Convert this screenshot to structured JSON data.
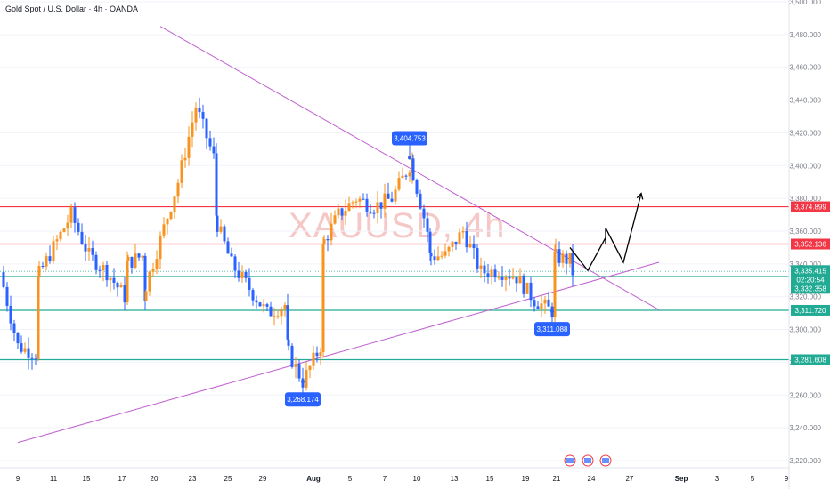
{
  "header": {
    "title": "Gold Spot / U.S. Dollar · 4h · OANDA"
  },
  "watermark": {
    "text": "XAUUSD, 4h"
  },
  "colors": {
    "up": "#f7931e",
    "down": "#2962ff",
    "trend": "#c060d0",
    "resistance": "#f23645",
    "support": "#22ab94",
    "projection": "#000000",
    "axis_text": "#787b86",
    "date_text": "#131722"
  },
  "chart_data": {
    "type": "candlestick",
    "title": "Gold Spot / U.S. Dollar · 4h · OANDA",
    "ylim": [
      3211,
      3500
    ],
    "y_ticks": [
      "3,500.000",
      "3,480.000",
      "3,460.000",
      "3,440.000",
      "3,420.000",
      "3,400.000",
      "3,380.000",
      "3,360.000",
      "3,340.000",
      "3,320.000",
      "3,300.000",
      "3,280.000",
      "3,260.000",
      "3,240.000",
      "3,220.000"
    ],
    "x_ticks": [
      "9",
      "11",
      "15",
      "17",
      "20",
      "23",
      "25",
      "29",
      "Aug",
      "5",
      "7",
      "10",
      "13",
      "15",
      "19",
      "21",
      "24",
      "27",
      "Sep",
      "3",
      "5",
      "9"
    ],
    "price_path": [
      [
        "Jul 8",
        3335
      ],
      [
        "Jul 9",
        3290
      ],
      [
        "Jul 10",
        3285
      ],
      [
        "Jul 10",
        3330
      ],
      [
        "Jul 11",
        3350
      ],
      [
        "Jul 14",
        3370
      ],
      [
        "Jul 15",
        3345
      ],
      [
        "Jul 16",
        3335
      ],
      [
        "Jul 17",
        3320
      ],
      [
        "Jul 17",
        3340
      ],
      [
        "Jul 18",
        3345
      ],
      [
        "Jul 18",
        3320
      ],
      [
        "Jul 21",
        3355
      ],
      [
        "Jul 22",
        3390
      ],
      [
        "Jul 23",
        3436
      ],
      [
        "Jul 24",
        3405
      ],
      [
        "Jul 24",
        3370
      ],
      [
        "Jul 25",
        3340
      ],
      [
        "Jul 28",
        3325
      ],
      [
        "Jul 29",
        3310
      ],
      [
        "Jul 30",
        3315
      ],
      [
        "Jul 30",
        3290
      ],
      [
        "Jul 31",
        3268
      ],
      [
        "Aug 1",
        3290
      ],
      [
        "Aug 1",
        3350
      ],
      [
        "Aug 4",
        3370
      ],
      [
        "Aug 5",
        3380
      ],
      [
        "Aug 6",
        3375
      ],
      [
        "Aug 7",
        3380
      ],
      [
        "Aug 8",
        3400
      ],
      [
        "Aug 8",
        3404
      ],
      [
        "Aug 11",
        3360
      ],
      [
        "Aug 11",
        3345
      ],
      [
        "Aug 12",
        3345
      ],
      [
        "Aug 13",
        3360
      ],
      [
        "Aug 14",
        3335
      ],
      [
        "Aug 15",
        3336
      ],
      [
        "Aug 18",
        3332
      ],
      [
        "Aug 19",
        3318
      ],
      [
        "Aug 20",
        3311
      ],
      [
        "Aug 20",
        3345
      ],
      [
        "Aug 21",
        3342
      ],
      [
        "Aug 21",
        3335
      ]
    ],
    "horizontal_levels": [
      {
        "label": "3,374.899",
        "value": 3374.899,
        "role": "resistance"
      },
      {
        "label": "3,352.136",
        "value": 3352.136,
        "role": "resistance"
      },
      {
        "label": "3,332.358",
        "value": 3332.358,
        "role": "support"
      },
      {
        "label": "3,311.720",
        "value": 3311.72,
        "role": "support"
      },
      {
        "label": "3,281.608",
        "value": 3281.608,
        "role": "support"
      }
    ],
    "current_price": {
      "label": "3,335.415",
      "countdown": "02:20:54",
      "value": 3335.415
    },
    "annotations": [
      {
        "label": "3,404.753",
        "x": "Aug 8",
        "y": 3404.753
      },
      {
        "label": "3,268.174",
        "x": "Jul 31",
        "y": 3268.174
      },
      {
        "label": "3,311.088",
        "x": "Aug 20",
        "y": 3311.088
      }
    ],
    "trendlines": [
      {
        "name": "descending",
        "points": [
          [
            "Jul 19",
            3485
          ],
          [
            "Aug 28",
            3312
          ]
        ]
      },
      {
        "name": "ascending",
        "points": [
          [
            "Jul 9",
            3231
          ],
          [
            "Aug 28",
            3341
          ]
        ]
      }
    ],
    "projection": [
      [
        "Aug 21",
        3350
      ],
      [
        "Aug 22",
        3336
      ],
      [
        "Aug 23",
        3356
      ],
      [
        "Aug 24",
        3352
      ],
      [
        "Aug 25",
        3362
      ],
      [
        "Aug 26",
        3341
      ],
      [
        "Aug 27",
        3383
      ]
    ],
    "event_icons": [
      "Aug 21",
      "Aug 22",
      "Aug 25"
    ]
  }
}
